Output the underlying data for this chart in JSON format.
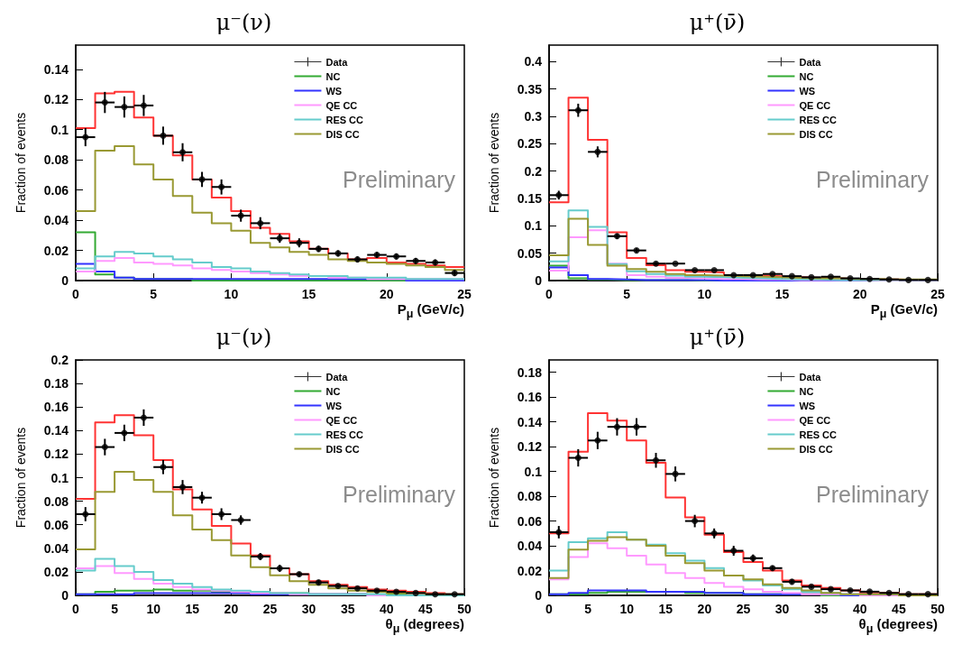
{
  "chart_data": [
    {
      "type": "histogram",
      "title": "μ⁻(ν)",
      "xlabel": "P$_{μ}$ (GeV/c)",
      "ylabel": "Fraction of events",
      "legend": "top right",
      "annotations": [
        "Preliminary"
      ],
      "bins": [
        0,
        1.25,
        2.5,
        3.75,
        5,
        6.25,
        7.5,
        8.75,
        10,
        11.25,
        12.5,
        13.75,
        15,
        16.25,
        17.5,
        18.75,
        20,
        21.25,
        22.5,
        23.75,
        25
      ],
      "xlim": [
        0,
        25
      ],
      "xticks": [
        0,
        5,
        10,
        15,
        20,
        25
      ],
      "ylim": [
        0,
        0.156
      ],
      "yticks": [
        0,
        0.02,
        0.04,
        0.06,
        0.08,
        0.1,
        0.12,
        0.14
      ],
      "series": [
        {
          "name": "Data",
          "type": "scatter",
          "color": "#000000",
          "x": [
            0.625,
            1.875,
            3.125,
            4.375,
            5.625,
            6.875,
            8.125,
            9.375,
            10.625,
            11.875,
            13.125,
            14.375,
            15.625,
            16.875,
            18.125,
            19.375,
            20.625,
            21.875,
            23.125,
            24.375
          ],
          "values": [
            0.095,
            0.118,
            0.115,
            0.116,
            0.096,
            0.085,
            0.067,
            0.062,
            0.043,
            0.038,
            0.028,
            0.025,
            0.021,
            0.018,
            0.014,
            0.017,
            0.016,
            0.013,
            0.012,
            0.005
          ],
          "errors": [
            0.006,
            0.007,
            0.007,
            0.007,
            0.006,
            0.006,
            0.005,
            0.005,
            0.004,
            0.004,
            0.003,
            0.003,
            0.002,
            0.002,
            0.002,
            0.002,
            0.002,
            0.002,
            0.002,
            0.002
          ],
          "xerrors": [
            0.625,
            0.625,
            0.625,
            0.625,
            0.625,
            0.625,
            0.625,
            0.625,
            0.625,
            0.625,
            0.625,
            0.625,
            0.625,
            0.625,
            0.625,
            0.625,
            0.625,
            0.625,
            0.625,
            0.625
          ]
        },
        {
          "color": "#ff3333",
          "values": [
            0.101,
            0.124,
            0.125,
            0.108,
            0.096,
            0.083,
            0.067,
            0.055,
            0.046,
            0.035,
            0.031,
            0.026,
            0.021,
            0.018,
            0.014,
            0.015,
            0.012,
            0.011,
            0.01,
            0.009
          ]
        },
        {
          "name": "NC",
          "color": "#33aa33",
          "values": [
            0.032,
            0.004,
            0.002,
            0.001,
            0.001,
            0.001,
            0,
            0,
            0,
            0,
            0,
            0,
            0,
            0,
            0,
            0,
            0,
            0,
            0,
            0
          ]
        },
        {
          "name": "WS",
          "color": "#3333ff",
          "values": [
            0.011,
            0.006,
            0.002,
            0.001,
            0.001,
            0.001,
            0.001,
            0.001,
            0.001,
            0.001,
            0.001,
            0.001,
            0.001,
            0.001,
            0.001,
            0.001,
            0.001,
            0,
            0,
            0
          ]
        },
        {
          "name": "QE CC",
          "color": "#ff99ff",
          "values": [
            0.006,
            0.013,
            0.015,
            0.012,
            0.011,
            0.01,
            0.008,
            0.007,
            0.006,
            0.005,
            0.004,
            0.003,
            0.003,
            0.002,
            0.002,
            0.001,
            0.001,
            0.001,
            0.001,
            0.001
          ]
        },
        {
          "name": "RES CC",
          "color": "#66cccc",
          "values": [
            0.008,
            0.016,
            0.019,
            0.018,
            0.016,
            0.014,
            0.012,
            0.009,
            0.008,
            0.006,
            0.005,
            0.004,
            0.003,
            0.003,
            0.002,
            0.002,
            0.002,
            0.001,
            0.001,
            0.001
          ]
        },
        {
          "name": "DIS CC",
          "color": "#999933",
          "values": [
            0.046,
            0.086,
            0.089,
            0.077,
            0.067,
            0.056,
            0.045,
            0.038,
            0.033,
            0.025,
            0.022,
            0.019,
            0.017,
            0.014,
            0.013,
            0.012,
            0.011,
            0.01,
            0.009,
            0.007
          ]
        }
      ]
    },
    {
      "type": "histogram",
      "title": "μ⁺(ν̄)",
      "xlabel": "P$_{μ}$ (GeV/c)",
      "ylabel": "Fraction of events",
      "legend": "top right",
      "annotations": [
        "Preliminary"
      ],
      "bins": [
        0,
        1.25,
        2.5,
        3.75,
        5,
        6.25,
        7.5,
        8.75,
        10,
        11.25,
        12.5,
        13.75,
        15,
        16.25,
        17.5,
        18.75,
        20,
        21.25,
        22.5,
        23.75,
        25
      ],
      "xlim": [
        0,
        25
      ],
      "xticks": [
        0,
        5,
        10,
        15,
        20,
        25
      ],
      "ylim": [
        0,
        0.43
      ],
      "yticks": [
        0,
        0.05,
        0.1,
        0.15,
        0.2,
        0.25,
        0.3,
        0.35,
        0.4
      ],
      "series": [
        {
          "name": "Data",
          "type": "scatter",
          "color": "#000000",
          "x": [
            0.625,
            1.875,
            3.125,
            4.375,
            5.625,
            6.875,
            8.125,
            9.375,
            10.625,
            11.875,
            13.125,
            14.375,
            15.625,
            16.875,
            18.125,
            19.375,
            20.625,
            21.875,
            23.125,
            24.375
          ],
          "values": [
            0.156,
            0.311,
            0.235,
            0.081,
            0.055,
            0.031,
            0.031,
            0.019,
            0.019,
            0.01,
            0.01,
            0.012,
            0.008,
            0.006,
            0.007,
            0.004,
            0.003,
            0.002,
            0.001,
            0.001
          ],
          "errors": [
            0.008,
            0.012,
            0.01,
            0.005,
            0.004,
            0.003,
            null,
            null,
            null,
            null,
            null,
            null,
            null,
            null,
            null,
            null,
            null,
            null,
            null,
            null
          ],
          "xerrors": [
            0.625,
            0.625,
            0.625,
            0.625,
            0.625,
            0.625,
            0.625,
            0.625,
            0.625,
            0.625,
            0.625,
            0.625,
            0.625,
            0.625,
            0.625,
            0.625,
            0.625,
            0.625,
            0.625,
            0.625
          ]
        },
        {
          "color": "#ff3333",
          "values": [
            0.143,
            0.334,
            0.257,
            0.088,
            0.041,
            0.028,
            0.019,
            0.016,
            0.015,
            0.01,
            0.009,
            0.008,
            0.006,
            0.005,
            0.004,
            0.003,
            0.002,
            0.002,
            0.001,
            0.001
          ]
        },
        {
          "name": "NC",
          "color": "#33aa33",
          "values": [
            0.027,
            0.004,
            0.002,
            0.001,
            0.001,
            0.001,
            0.001,
            0,
            0,
            0,
            0,
            0,
            0,
            0,
            0,
            0,
            0,
            0,
            0,
            0
          ]
        },
        {
          "name": "WS",
          "color": "#3333ff",
          "values": [
            0.024,
            0.01,
            0.003,
            0.002,
            0.001,
            0.001,
            0.001,
            0.001,
            0,
            0,
            0,
            0,
            0,
            0,
            0,
            0,
            0,
            0,
            0,
            0
          ]
        },
        {
          "name": "QE CC",
          "color": "#ff99ff",
          "values": [
            0.018,
            0.079,
            0.092,
            0.031,
            0.01,
            0.007,
            0.005,
            0.004,
            0.003,
            0.003,
            0.002,
            0.002,
            0.001,
            0.001,
            0.001,
            0.001,
            0,
            0,
            0,
            0
          ]
        },
        {
          "name": "RES CC",
          "color": "#66cccc",
          "values": [
            0.035,
            0.128,
            0.098,
            0.03,
            0.017,
            0.012,
            0.009,
            0.007,
            0.006,
            0.005,
            0.004,
            0.003,
            0.002,
            0.002,
            0.001,
            0.001,
            0.001,
            0.001,
            0.001,
            0.001
          ]
        },
        {
          "name": "DIS CC",
          "color": "#999933",
          "values": [
            0.046,
            0.113,
            0.065,
            0.027,
            0.021,
            0.016,
            0.012,
            0.01,
            0.009,
            0.008,
            0.007,
            0.006,
            0.005,
            0.004,
            0.004,
            0.003,
            0.003,
            0.002,
            0.002,
            0.002
          ]
        }
      ]
    },
    {
      "type": "histogram",
      "title": "μ⁻(ν)",
      "xlabel": "θ$_{μ}$ (degrees)",
      "ylabel": "Fraction of events",
      "legend": "top right",
      "annotations": [
        "Preliminary"
      ],
      "bins": [
        0,
        2.5,
        5,
        7.5,
        10,
        12.5,
        15,
        17.5,
        20,
        22.5,
        25,
        27.5,
        30,
        32.5,
        35,
        37.5,
        40,
        42.5,
        45,
        47.5,
        50
      ],
      "xlim": [
        0,
        50
      ],
      "xticks": [
        0,
        5,
        10,
        15,
        20,
        25,
        30,
        35,
        40,
        45,
        50
      ],
      "ylim": [
        0,
        0.2
      ],
      "yticks": [
        0,
        0.02,
        0.04,
        0.06,
        0.08,
        0.1,
        0.12,
        0.14,
        0.16,
        0.18,
        0.2
      ],
      "series": [
        {
          "name": "Data",
          "type": "scatter",
          "color": "#000000",
          "x": [
            1.25,
            3.75,
            6.25,
            8.75,
            11.25,
            13.75,
            16.25,
            18.75,
            21.25,
            23.75,
            26.25,
            28.75,
            31.25,
            33.75,
            36.25,
            38.75,
            41.25,
            43.75,
            46.25,
            48.75
          ],
          "values": [
            0.069,
            0.126,
            0.138,
            0.151,
            0.109,
            0.092,
            0.083,
            0.069,
            0.064,
            0.033,
            0.023,
            0.018,
            0.011,
            0.008,
            0.006,
            0.004,
            0.003,
            0.002,
            0.001,
            0.001
          ],
          "errors": [
            0.006,
            0.007,
            0.007,
            0.007,
            0.006,
            0.006,
            0.005,
            0.005,
            0.004,
            0.003,
            0.003,
            0.002,
            0.002,
            0.001,
            0.001,
            0.001,
            0.001,
            null,
            null,
            null
          ],
          "xerrors": [
            1.25,
            1.25,
            1.25,
            1.25,
            1.25,
            1.25,
            1.25,
            1.25,
            1.25,
            1.25,
            1.25,
            1.25,
            1.25,
            1.25,
            1.25,
            1.25,
            1.25,
            1.25,
            1.25,
            1.25
          ]
        },
        {
          "color": "#ff3333",
          "values": [
            0.082,
            0.147,
            0.153,
            0.136,
            0.115,
            0.09,
            0.073,
            0.059,
            0.044,
            0.034,
            0.023,
            0.018,
            0.012,
            0.009,
            0.007,
            0.005,
            0.004,
            0.003,
            0.002,
            0.001
          ]
        },
        {
          "name": "NC",
          "color": "#33aa33",
          "values": [
            0.001,
            0.003,
            0.004,
            0.004,
            0.005,
            0.004,
            0.004,
            0.003,
            0.003,
            0.002,
            0.002,
            0.002,
            0.001,
            0.001,
            0.001,
            0.001,
            0.001,
            0,
            0,
            0
          ]
        },
        {
          "name": "WS",
          "color": "#3333ff",
          "values": [
            0.001,
            0.001,
            0.001,
            0.002,
            0.002,
            0.002,
            0.002,
            0.002,
            0.002,
            0.001,
            0.001,
            0.001,
            0.001,
            0.001,
            0.001,
            0,
            0,
            0,
            0,
            0
          ]
        },
        {
          "name": "QE CC",
          "color": "#ff99ff",
          "values": [
            0.023,
            0.025,
            0.019,
            0.014,
            0.01,
            0.007,
            0.005,
            0.004,
            0.003,
            0.002,
            0.002,
            0.001,
            0.001,
            0.001,
            0.001,
            0,
            0,
            0,
            0,
            0
          ]
        },
        {
          "name": "RES CC",
          "color": "#66cccc",
          "values": [
            0.021,
            0.031,
            0.025,
            0.02,
            0.013,
            0.01,
            0.007,
            0.005,
            0.004,
            0.003,
            0.002,
            0.002,
            0.001,
            0.001,
            0.001,
            0.001,
            0,
            0,
            0,
            0
          ]
        },
        {
          "name": "DIS CC",
          "color": "#999933",
          "values": [
            0.039,
            0.088,
            0.105,
            0.098,
            0.088,
            0.068,
            0.056,
            0.047,
            0.034,
            0.024,
            0.017,
            0.012,
            0.009,
            0.006,
            0.004,
            0.003,
            0.002,
            0.002,
            0.001,
            0.001
          ]
        }
      ]
    },
    {
      "type": "histogram",
      "title": "μ⁺(ν̄)",
      "xlabel": "θ$_{μ}$ (degrees)",
      "ylabel": "Fraction of events",
      "legend": "top right",
      "annotations": [
        "Preliminary"
      ],
      "bins": [
        0,
        2.5,
        5,
        7.5,
        10,
        12.5,
        15,
        17.5,
        20,
        22.5,
        25,
        27.5,
        30,
        32.5,
        35,
        37.5,
        40,
        42.5,
        45,
        47.5,
        50
      ],
      "xlim": [
        0,
        50
      ],
      "xticks": [
        0,
        5,
        10,
        15,
        20,
        25,
        30,
        35,
        40,
        45,
        50
      ],
      "ylim": [
        0,
        0.19
      ],
      "yticks": [
        0,
        0.02,
        0.04,
        0.06,
        0.08,
        0.1,
        0.12,
        0.14,
        0.16,
        0.18
      ],
      "series": [
        {
          "name": "Data",
          "type": "scatter",
          "color": "#000000",
          "x": [
            1.25,
            3.75,
            6.25,
            8.75,
            11.25,
            13.75,
            16.25,
            18.75,
            21.25,
            23.75,
            26.25,
            28.75,
            31.25,
            33.75,
            36.25,
            38.75,
            41.25,
            43.75,
            46.25,
            48.75
          ],
          "values": [
            0.051,
            0.111,
            0.125,
            0.136,
            0.136,
            0.109,
            0.098,
            0.06,
            0.05,
            0.036,
            0.03,
            0.022,
            0.011,
            0.007,
            0.005,
            0.004,
            0.003,
            0.002,
            0.001,
            0.001
          ],
          "errors": [
            0.005,
            0.007,
            0.007,
            0.007,
            0.007,
            0.006,
            0.006,
            0.005,
            0.004,
            0.004,
            0.003,
            0.002,
            0.002,
            0.001,
            0.001,
            0.001,
            0.001,
            null,
            null,
            null
          ],
          "xerrors": [
            1.25,
            1.25,
            1.25,
            1.25,
            1.25,
            1.25,
            1.25,
            1.25,
            1.25,
            1.25,
            1.25,
            1.25,
            1.25,
            1.25,
            1.25,
            1.25,
            1.25,
            1.25,
            1.25,
            1.25
          ]
        },
        {
          "color": "#ff3333",
          "values": [
            0.05,
            0.116,
            0.147,
            0.141,
            0.125,
            0.107,
            0.079,
            0.063,
            0.049,
            0.035,
            0.027,
            0.02,
            0.012,
            0.008,
            0.006,
            0.004,
            0.002,
            0.002,
            0.001,
            0.001
          ]
        },
        {
          "name": "NC",
          "color": "#33aa33",
          "values": [
            0.001,
            0.001,
            0.002,
            0.003,
            0.003,
            0.003,
            0.003,
            0.002,
            0.002,
            0.002,
            0.001,
            0.001,
            0.001,
            0.001,
            0,
            0,
            0,
            0,
            0,
            0
          ]
        },
        {
          "name": "WS",
          "color": "#3333ff",
          "values": [
            0.001,
            0.002,
            0.004,
            0.004,
            0.004,
            0.003,
            0.003,
            0.003,
            0.002,
            0.002,
            0.001,
            0.001,
            0.001,
            0.001,
            0.001,
            0,
            0,
            0,
            0,
            0
          ]
        },
        {
          "name": "QE CC",
          "color": "#ff99ff",
          "values": [
            0.013,
            0.031,
            0.042,
            0.038,
            0.032,
            0.025,
            0.018,
            0.014,
            0.01,
            0.007,
            0.005,
            0.003,
            0.002,
            0.001,
            0.001,
            0.001,
            0,
            0,
            0,
            0
          ]
        },
        {
          "name": "RES CC",
          "color": "#66cccc",
          "values": [
            0.02,
            0.043,
            0.046,
            0.051,
            0.045,
            0.041,
            0.034,
            0.028,
            0.022,
            0.016,
            0.012,
            0.008,
            0.005,
            0.003,
            0.002,
            0.001,
            0.001,
            0.001,
            0,
            0
          ]
        },
        {
          "name": "DIS CC",
          "color": "#999933",
          "values": [
            0.014,
            0.037,
            0.044,
            0.047,
            0.045,
            0.04,
            0.032,
            0.026,
            0.02,
            0.016,
            0.013,
            0.009,
            0.006,
            0.004,
            0.002,
            0.001,
            0.001,
            0.001,
            0,
            0
          ]
        }
      ]
    }
  ]
}
